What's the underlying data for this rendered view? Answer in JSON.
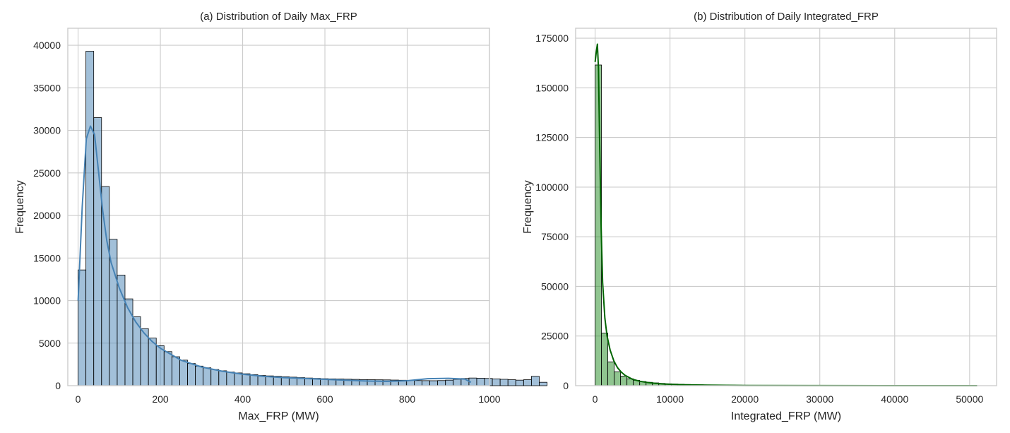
{
  "chart_data": [
    {
      "type": "histogram",
      "title": "(a) Distribution of Daily Max_FRP",
      "xlabel": "Max_FRP (MW)",
      "ylabel": "Frequency",
      "xlim": [
        -25,
        1000
      ],
      "ylim": [
        0,
        42000
      ],
      "xticks": [
        0,
        200,
        400,
        600,
        800,
        1000
      ],
      "yticks": [
        0,
        5000,
        10000,
        15000,
        20000,
        25000,
        30000,
        35000,
        40000
      ],
      "xtick_labels": [
        "0",
        "200",
        "400",
        "600",
        "800",
        "1000"
      ],
      "ytick_labels": [
        "0",
        "5000",
        "10000",
        "15000",
        "20000",
        "25000",
        "30000",
        "35000",
        "40000"
      ],
      "bar_color": "#4682b4",
      "kde_color": "#4682b4",
      "bin_start": 0,
      "bin_width": 19.0,
      "values": [
        13600,
        39300,
        31500,
        23400,
        17200,
        13000,
        10200,
        8100,
        6700,
        5600,
        4700,
        4000,
        3400,
        3000,
        2600,
        2300,
        2100,
        1900,
        1750,
        1600,
        1500,
        1400,
        1300,
        1200,
        1150,
        1100,
        1050,
        1000,
        950,
        900,
        860,
        820,
        800,
        780,
        760,
        740,
        720,
        700,
        690,
        680,
        660,
        640,
        620,
        600,
        590,
        580,
        600,
        650,
        750,
        850,
        900,
        880,
        850,
        800,
        750,
        700,
        650,
        700,
        1100,
        400
      ],
      "kde_x": [
        0,
        10,
        20,
        30,
        40,
        50,
        60,
        70,
        80,
        100,
        120,
        140,
        160,
        180,
        200,
        250,
        300,
        350,
        400,
        450,
        500,
        550,
        600,
        650,
        700,
        750,
        800,
        850,
        900,
        940,
        955
      ],
      "kde_y": [
        10000,
        21000,
        29000,
        30500,
        29500,
        25000,
        20500,
        17000,
        14500,
        11500,
        9200,
        7500,
        6200,
        5200,
        4400,
        3000,
        2200,
        1700,
        1350,
        1100,
        950,
        850,
        750,
        650,
        550,
        500,
        580,
        820,
        860,
        780,
        400
      ]
    },
    {
      "type": "histogram",
      "title": "(b) Distribution of Daily Integrated_FRP",
      "xlabel": "Integrated_FRP (MW)",
      "ylabel": "Frequency",
      "xlim": [
        -2600,
        53600
      ],
      "ylim": [
        0,
        180000
      ],
      "xticks": [
        0,
        10000,
        20000,
        30000,
        40000,
        50000
      ],
      "yticks": [
        0,
        25000,
        50000,
        75000,
        100000,
        125000,
        150000,
        175000
      ],
      "xtick_labels": [
        "0",
        "10000",
        "20000",
        "30000",
        "40000",
        "50000"
      ],
      "ytick_labels": [
        "0",
        "25000",
        "50000",
        "75000",
        "100000",
        "125000",
        "150000",
        "175000"
      ],
      "bar_color": "#228b22",
      "kde_color": "#006400",
      "bin_start": 0,
      "bin_width": 850,
      "values": [
        161500,
        26500,
        12000,
        7000,
        4800,
        3500,
        2700,
        2100,
        1700,
        1400,
        1150,
        950,
        800,
        700,
        600,
        520,
        460,
        400,
        360,
        320,
        290,
        260,
        240,
        220,
        200,
        185,
        170,
        160,
        150,
        140,
        130,
        120,
        110,
        100,
        95,
        90,
        85,
        80,
        75,
        70,
        65,
        60,
        55,
        50,
        45,
        40,
        38,
        35,
        32,
        30,
        28,
        26,
        24,
        22,
        20,
        18,
        16,
        14,
        12,
        10
      ],
      "kde_x": [
        0,
        150,
        300,
        450,
        600,
        800,
        1000,
        1300,
        1600,
        2000,
        2500,
        3000,
        3500,
        4000,
        5000,
        6000,
        7000,
        8000,
        9000,
        10000,
        12000,
        15000,
        20000,
        30000,
        40000,
        51000
      ],
      "kde_y": [
        163000,
        168000,
        172000,
        160000,
        125000,
        80000,
        52000,
        34000,
        25000,
        18000,
        12500,
        9000,
        6800,
        5200,
        3200,
        2200,
        1600,
        1200,
        900,
        700,
        450,
        250,
        120,
        40,
        15,
        5
      ]
    }
  ]
}
